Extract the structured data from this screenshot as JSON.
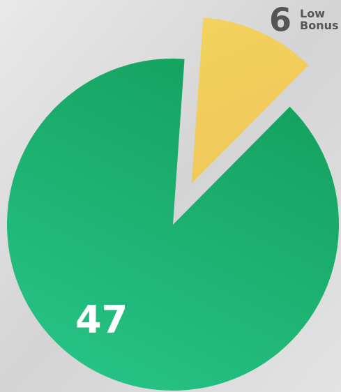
{
  "chart_data": {
    "type": "pie",
    "categories": [
      "Low Bonus",
      null
    ],
    "values": [
      6,
      47
    ],
    "colors": [
      "#f0cf5a",
      "#1ea86a"
    ]
  }
}
